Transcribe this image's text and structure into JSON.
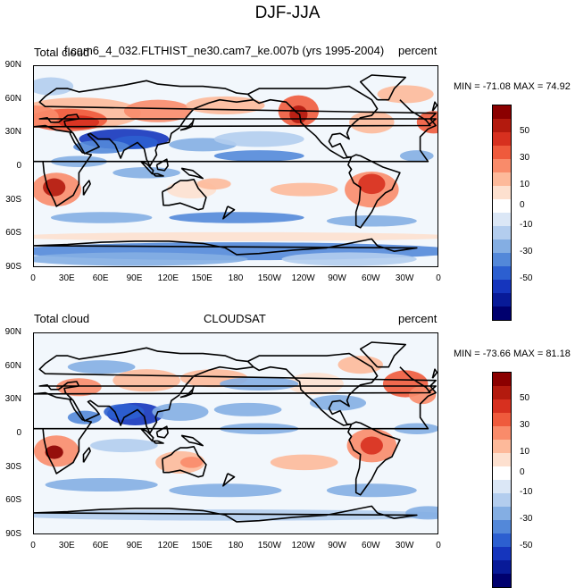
{
  "figure": {
    "title": "DJF-JJA"
  },
  "colors": {
    "scale": [
      "#8b0000",
      "#b31a0e",
      "#d7301f",
      "#ef5a3c",
      "#f98b6a",
      "#fdb99a",
      "#fde0cf",
      "#ffffff",
      "#dbe7f6",
      "#b3cdee",
      "#84aee3",
      "#5388d9",
      "#2c5fd0",
      "#1535bd",
      "#081a98",
      "#00006e"
    ],
    "coast": "#000000"
  },
  "axes": {
    "lat_ticks": [
      "90N",
      "60N",
      "30N",
      "0",
      "30S",
      "60S",
      "90S"
    ],
    "lon_ticks": [
      "0",
      "30E",
      "60E",
      "90E",
      "120E",
      "150E",
      "180",
      "150W",
      "120W",
      "90W",
      "60W",
      "30W",
      "0"
    ]
  },
  "colorbar": {
    "labels": [
      "50",
      "30",
      "10",
      "0",
      "-10",
      "-30",
      "-50"
    ]
  },
  "panels": [
    {
      "left_label": "Total cloud",
      "center_label": "f.cam6_4_032.FLTHIST_ne30.cam7_ke.007b (yrs 1995-2004)",
      "right_label": "percent",
      "minmax": "MIN = -71.08 MAX =  74.92"
    },
    {
      "left_label": "Total cloud",
      "center_label": "CLOUDSAT",
      "right_label": "percent",
      "minmax": "MIN = -73.66 MAX =  81.18"
    }
  ]
}
